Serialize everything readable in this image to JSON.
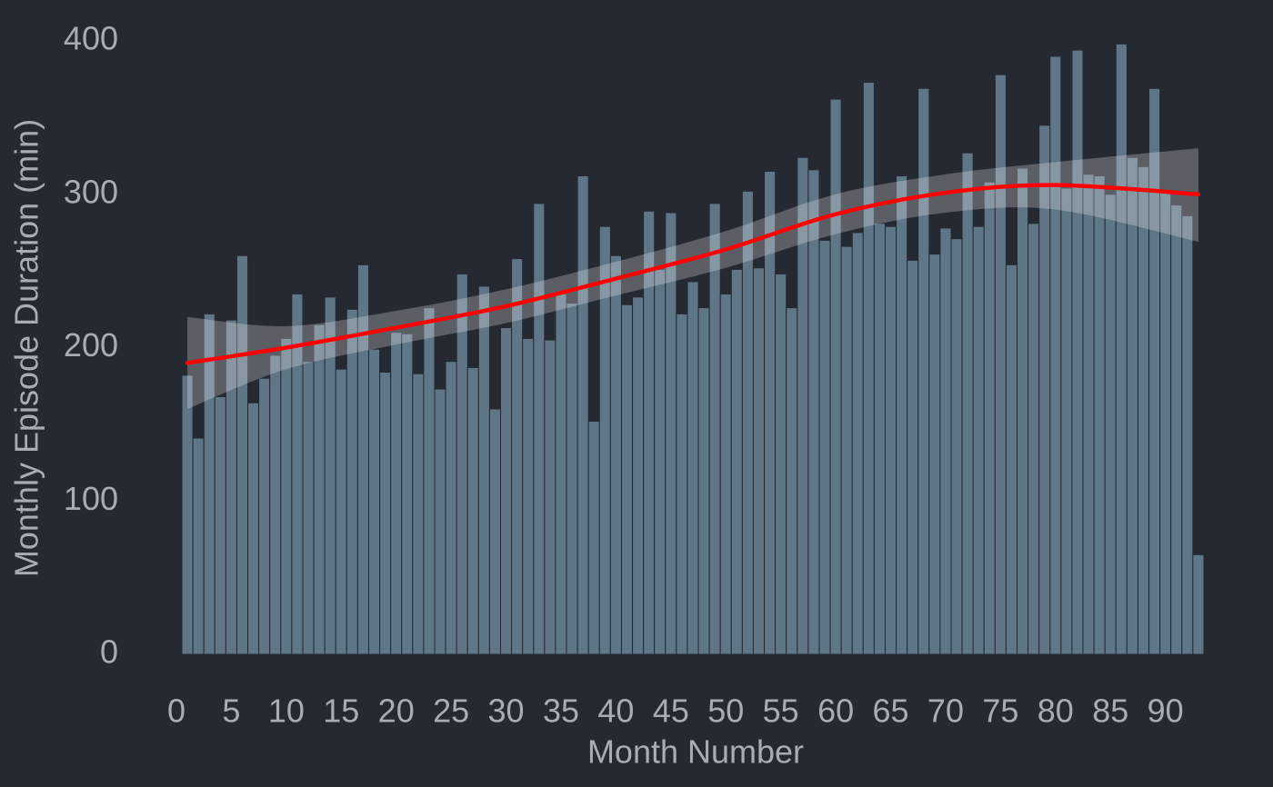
{
  "chart_data": {
    "type": "bar",
    "x_label": "Month Number",
    "y_label": "Monthly Episode Duration (min)",
    "x": [
      1,
      2,
      3,
      4,
      5,
      6,
      7,
      8,
      9,
      10,
      11,
      12,
      13,
      14,
      15,
      16,
      17,
      18,
      19,
      20,
      21,
      22,
      23,
      24,
      25,
      26,
      27,
      28,
      29,
      30,
      31,
      32,
      33,
      34,
      35,
      36,
      37,
      38,
      39,
      40,
      41,
      42,
      43,
      44,
      45,
      46,
      47,
      48,
      49,
      50,
      51,
      52,
      53,
      54,
      55,
      56,
      57,
      58,
      59,
      60,
      61,
      62,
      63,
      64,
      65,
      66,
      67,
      68,
      69,
      70,
      71,
      72,
      73,
      74,
      75,
      76,
      77,
      78,
      79,
      80,
      81,
      82,
      83,
      84,
      85,
      86,
      87,
      88,
      89,
      90,
      91,
      92,
      93
    ],
    "values": [
      182,
      141,
      222,
      168,
      218,
      260,
      164,
      180,
      195,
      206,
      235,
      191,
      215,
      233,
      186,
      225,
      254,
      199,
      184,
      210,
      209,
      183,
      226,
      173,
      191,
      248,
      187,
      240,
      160,
      213,
      258,
      206,
      294,
      205,
      235,
      229,
      312,
      152,
      279,
      260,
      228,
      233,
      289,
      251,
      288,
      222,
      243,
      226,
      294,
      235,
      251,
      302,
      252,
      315,
      248,
      226,
      324,
      316,
      270,
      362,
      266,
      275,
      373,
      281,
      279,
      312,
      257,
      369,
      261,
      278,
      271,
      327,
      279,
      308,
      378,
      254,
      317,
      281,
      345,
      390,
      304,
      394,
      313,
      312,
      300,
      398,
      324,
      318,
      369,
      301,
      293,
      286,
      65
    ],
    "color": "#5f7686",
    "fit": {
      "x": [
        1,
        10,
        20,
        30,
        40,
        50,
        60,
        70,
        80,
        93
      ],
      "values": [
        190,
        200,
        213,
        227,
        245,
        264,
        287,
        301,
        306,
        300
      ],
      "lower": [
        160,
        186,
        202,
        216,
        234,
        252,
        274,
        288,
        290,
        269
      ],
      "upper": [
        220,
        214,
        224,
        238,
        256,
        276,
        300,
        313,
        321,
        330
      ],
      "color": "#ff0000",
      "band_color": "#ffffff"
    },
    "xlim": [
      0,
      94
    ],
    "xticks": [
      0,
      5,
      10,
      15,
      20,
      25,
      30,
      35,
      40,
      45,
      50,
      55,
      60,
      65,
      70,
      75,
      80,
      85,
      90
    ],
    "ylim": [
      0,
      400
    ],
    "yticks": [
      0,
      100,
      200,
      300,
      400
    ],
    "grid": false
  }
}
